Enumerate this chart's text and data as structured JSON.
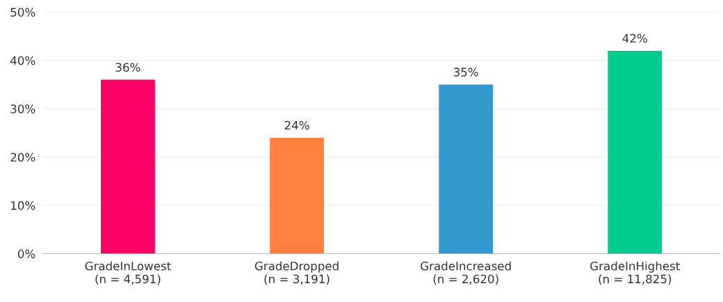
{
  "chart_data": {
    "type": "bar",
    "categories": [
      "GradeInLowest\n(n = 4,591)",
      "GradeDropped\n(n = 3,191)",
      "GradeIncreased\n(n = 2,620)",
      "GradeInHighest\n(n = 11,825)"
    ],
    "values": [
      36,
      24,
      35,
      42
    ],
    "colors": [
      "#ff0066",
      "#ff8040",
      "#3399cc",
      "#00cc8f"
    ],
    "value_labels": [
      "36%",
      "24%",
      "35%",
      "42%"
    ],
    "ylim": [
      0,
      50
    ],
    "yticks": [
      {
        "value": 0,
        "label": "0%"
      },
      {
        "value": 10,
        "label": "10%"
      },
      {
        "value": 20,
        "label": "20%"
      },
      {
        "value": 30,
        "label": "30%"
      },
      {
        "value": 40,
        "label": "40%"
      },
      {
        "value": 50,
        "label": "50%"
      }
    ],
    "grid": "y"
  }
}
